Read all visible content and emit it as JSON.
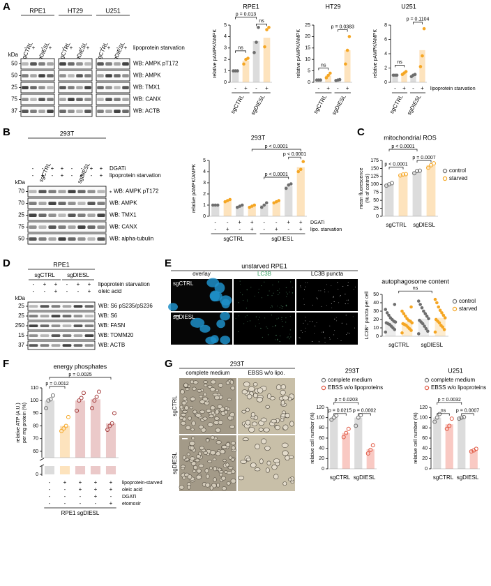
{
  "panel_labels": [
    "A",
    "B",
    "C",
    "D",
    "E",
    "F",
    "G"
  ],
  "blots": [
    {
      "headers": [
        {
          "label": "RPE1",
          "lanes": [
            "sgCTRL",
            "sgDIESL"
          ]
        },
        {
          "label": "HT29",
          "lanes": [
            "sgCTRL",
            "sgDIESL"
          ]
        },
        {
          "label": "U251",
          "lanes": [
            "sgCTRL",
            "sgDIESL"
          ]
        }
      ],
      "rows": [
        {
          "label": "lipoprotein starvation",
          "signs": [
            "-",
            "+",
            "-",
            "+",
            "-",
            "+",
            "-",
            "+",
            "-",
            "+",
            "-",
            "+"
          ]
        }
      ],
      "kda_label": "kDa",
      "bands": [
        {
          "kda": 50,
          "label": "WB: AMPK pT172"
        },
        {
          "kda": 50,
          "label": "WB: AMPK"
        },
        {
          "kda": 25,
          "label": "WB: TMX1"
        },
        {
          "kda": 75,
          "label": "WB: CANX"
        },
        {
          "kda": 37,
          "label": "WB: ACTB"
        }
      ]
    },
    {
      "headers": [
        {
          "label": "293T",
          "lanes": [
            "sgCTRL",
            "sgDIESL"
          ]
        }
      ],
      "rows": [
        {
          "label": "DGATi",
          "signs": [
            "-",
            "-",
            "+",
            "+",
            "-",
            "-",
            "+",
            "+"
          ]
        },
        {
          "label": "lipoprotein starvation",
          "signs": [
            "-",
            "+",
            "-",
            "+",
            "-",
            "+",
            "-",
            "+"
          ]
        }
      ],
      "kda_label": "kDa",
      "bands": [
        {
          "kda": 70,
          "label": "WB: AMPK pT172",
          "note": "*"
        },
        {
          "kda": 70,
          "label": "WB: AMPK"
        },
        {
          "kda": 25,
          "label": "WB: TMX1"
        },
        {
          "kda": 75,
          "label": "WB: CANX"
        },
        {
          "kda": 50,
          "label": "WB: alpha-tubulin"
        }
      ]
    },
    {
      "headers": [
        {
          "label": "RPE1",
          "lanes": [
            "sgCTRL",
            "sgDIESL"
          ]
        }
      ],
      "rows": [
        {
          "label": "lipoprotein starvation",
          "signs": [
            "-",
            "+",
            "+",
            "-",
            "+",
            "+"
          ]
        },
        {
          "label": "oleic acid",
          "signs": [
            "-",
            "-",
            "+",
            "-",
            "-",
            "+"
          ]
        }
      ],
      "kda_label": "kDa",
      "bands": [
        {
          "kda": 25,
          "label": "WB: S6 pS235/pS236"
        },
        {
          "kda": 25,
          "label": "WB: S6"
        },
        {
          "kda": 250,
          "label": "WB: FASN"
        },
        {
          "kda": 15,
          "label": "WB: TOMM20"
        },
        {
          "kda": 37,
          "label": "WB: ACTB"
        }
      ]
    }
  ],
  "charts": [
    {
      "type": "bar",
      "title": "RPE1",
      "ylabel": [
        "relative pAMPK/AMPK"
      ],
      "ylim": [
        0,
        5
      ],
      "yticks": [
        0,
        1,
        2,
        3,
        4,
        5
      ],
      "bars": [
        {
          "value": 1,
          "color": "#dcdcdc",
          "point_color": "#6e6e6e",
          "points": [
            1,
            1,
            1
          ]
        },
        {
          "value": 1.9,
          "color": "#fde3bd",
          "point_color": "#f5a623",
          "points": [
            1.6,
            2.0,
            2.1
          ]
        },
        {
          "value": 3.6,
          "color": "#dcdcdc",
          "point_color": "#6e6e6e",
          "points": [
            2.6,
            3.5,
            4.8
          ]
        },
        {
          "value": 3.9,
          "color": "#fde3bd",
          "point_color": "#f5a623",
          "points": [
            3.1,
            4.6,
            4.8
          ]
        }
      ],
      "rows": [
        {
          "signs": [
            "-",
            "+",
            "-",
            "+"
          ]
        }
      ],
      "groups": [
        "sgCTRL",
        "sgDIESL"
      ],
      "pvalues": [
        "ns",
        "p = 0.013",
        "ns"
      ]
    },
    {
      "type": "bar",
      "title": "HT29",
      "ylabel": [
        "relative pAMPK/AMPK"
      ],
      "ylim": [
        0,
        25
      ],
      "yticks": [
        0,
        5,
        10,
        15,
        20,
        25
      ],
      "bars": [
        {
          "value": 1,
          "color": "#dcdcdc",
          "point_color": "#6e6e6e",
          "points": [
            1,
            1,
            1
          ]
        },
        {
          "value": 3,
          "color": "#fde3bd",
          "point_color": "#f5a623",
          "points": [
            2,
            3,
            4
          ]
        },
        {
          "value": 1,
          "color": "#dcdcdc",
          "point_color": "#6e6e6e",
          "points": [
            0.8,
            1,
            1.2
          ]
        },
        {
          "value": 14,
          "color": "#fde3bd",
          "point_color": "#f5a623",
          "points": [
            8,
            14,
            20
          ]
        }
      ],
      "rows": [
        {
          "signs": [
            "-",
            "+",
            "-",
            "+"
          ]
        }
      ],
      "groups": [
        "sgCTRL",
        "sgDIESL"
      ],
      "pvalues": [
        "ns",
        "p = 0.0383"
      ]
    },
    {
      "type": "bar",
      "title": "U251",
      "ylabel": [
        "relative pAMPK/AMPK"
      ],
      "ylim": [
        0,
        8
      ],
      "yticks": [
        0,
        2,
        4,
        6,
        8
      ],
      "bars": [
        {
          "value": 1,
          "color": "#dcdcdc",
          "point_color": "#6e6e6e",
          "points": [
            1,
            1,
            1
          ]
        },
        {
          "value": 1.3,
          "color": "#fde3bd",
          "point_color": "#f5a623",
          "points": [
            1.1,
            1.3,
            1.5
          ]
        },
        {
          "value": 1,
          "color": "#dcdcdc",
          "point_color": "#6e6e6e",
          "points": [
            0.8,
            1,
            1.1
          ]
        },
        {
          "value": 4.5,
          "color": "#fde3bd",
          "point_color": "#f5a623",
          "points": [
            2.2,
            3.7,
            7.5
          ]
        }
      ],
      "rows": [
        {
          "label": "lipoprotein starvation",
          "signs": [
            "-",
            "+",
            "-",
            "+"
          ]
        }
      ],
      "groups": [
        "sgCTRL",
        "sgDIESL"
      ],
      "pvalues": [
        "ns",
        "p = 0.1104"
      ]
    },
    {
      "type": "bar",
      "title": "293T",
      "ylabel": [
        "relative pAMPK/AMPK"
      ],
      "ylim": [
        0,
        5
      ],
      "yticks": [
        0,
        1,
        2,
        3,
        4,
        5
      ],
      "bars": [
        {
          "value": 1,
          "color": "#dcdcdc",
          "point_color": "#6e6e6e",
          "points": [
            1,
            1,
            1
          ]
        },
        {
          "value": 1.4,
          "color": "#fde3bd",
          "point_color": "#f5a623",
          "points": [
            1.3,
            1.4,
            1.5
          ]
        },
        {
          "value": 0.9,
          "color": "#dcdcdc",
          "point_color": "#6e6e6e",
          "points": [
            0.8,
            0.9,
            1.0
          ]
        },
        {
          "value": 0.9,
          "color": "#fde3bd",
          "point_color": "#f5a623",
          "points": [
            0.8,
            0.9,
            1.0
          ]
        },
        {
          "value": 1,
          "color": "#dcdcdc",
          "point_color": "#6e6e6e",
          "points": [
            0.8,
            1.0,
            1.2
          ]
        },
        {
          "value": 1.3,
          "color": "#fde3bd",
          "point_color": "#f5a623",
          "points": [
            1.2,
            1.3,
            1.4
          ]
        },
        {
          "value": 2.7,
          "color": "#dcdcdc",
          "point_color": "#6e6e6e",
          "points": [
            2.5,
            2.8,
            2.9
          ]
        },
        {
          "value": 4.4,
          "color": "#fde3bd",
          "point_color": "#f5a623",
          "points": [
            4.0,
            4.2,
            4.9
          ]
        }
      ],
      "rows": [
        {
          "label": "DGATi",
          "signs": [
            "-",
            "-",
            "+",
            "+",
            "-",
            "-",
            "+",
            "+"
          ]
        },
        {
          "label": "lipo. starvation",
          "signs": [
            "-",
            "+",
            "-",
            "+",
            "-",
            "+",
            "-",
            "+"
          ]
        }
      ],
      "groups": [
        "sgCTRL",
        "sgDIESL"
      ],
      "pvalues": [
        "p < 0.0001",
        "p < 0.0001",
        "p < 0.0001"
      ]
    },
    {
      "type": "bar",
      "title": "mitochondrial ROS",
      "ylabel": [
        "mean fluorescence",
        "(% of control)"
      ],
      "ylim": [
        0,
        175
      ],
      "yticks": [
        0,
        25,
        50,
        75,
        100,
        125,
        150,
        175
      ],
      "points_open": true,
      "bars": [
        {
          "value": 100,
          "color": "#dcdcdc",
          "point_color": "#6e6e6e",
          "points": [
            96,
            100,
            104
          ]
        },
        {
          "value": 130,
          "color": "#fde3bd",
          "point_color": "#f5a623",
          "points": [
            128,
            131,
            132
          ]
        },
        {
          "value": 140,
          "color": "#dcdcdc",
          "point_color": "#6e6e6e",
          "points": [
            135,
            142,
            143
          ]
        },
        {
          "value": 160,
          "color": "#fde3bd",
          "point_color": "#f5a623",
          "points": [
            152,
            160,
            166
          ]
        }
      ],
      "groups": [
        "sgCTRL",
        "sgDIESL"
      ],
      "legend": [
        {
          "label": "control",
          "color": "#6e6e6e"
        },
        {
          "label": "starved",
          "color": "#f5a623"
        }
      ],
      "pvalues": [
        "p < 0.0001",
        "p < 0.0001",
        "p = 0.0007"
      ]
    },
    {
      "type": "bar",
      "title": "autophagosome content",
      "ylabel": [
        "LC3B⁺ puncta per cell"
      ],
      "ylim": [
        0,
        50
      ],
      "yticks": [
        0,
        10,
        20,
        30,
        40,
        50
      ],
      "bars": [
        {
          "value": 18,
          "color": "#ececec",
          "point_color": "#6e6e6e",
          "points": [
            5,
            8,
            10,
            12,
            14,
            15,
            16,
            17,
            18,
            20,
            22,
            25,
            28,
            32,
            38
          ]
        },
        {
          "value": 17,
          "color": "#fdeccf",
          "point_color": "#f5a623",
          "points": [
            4,
            7,
            9,
            11,
            13,
            14,
            15,
            16,
            18,
            19,
            21,
            24,
            27,
            30,
            35
          ]
        },
        {
          "value": 21,
          "color": "#ececec",
          "point_color": "#6e6e6e",
          "points": [
            3,
            6,
            9,
            12,
            15,
            17,
            19,
            21,
            24,
            27,
            30,
            34,
            38,
            42
          ]
        },
        {
          "value": 22,
          "color": "#fdeccf",
          "point_color": "#f5a623",
          "points": [
            5,
            8,
            11,
            13,
            16,
            18,
            20,
            22,
            25,
            28,
            31,
            35,
            40,
            44
          ]
        }
      ],
      "groups": [
        "sgCTRL",
        "sgDIESL"
      ],
      "legend": [
        {
          "label": "control",
          "color": "#6e6e6e"
        },
        {
          "label": "starved",
          "color": "#f5a623"
        }
      ],
      "pvalues": [
        "ns"
      ]
    },
    {
      "type": "bar",
      "title": "energy phosphates",
      "ylabel": [
        "relative ATP (A.U.)",
        "per mg protein (%)"
      ],
      "ylim": [
        55,
        110
      ],
      "yticks": [
        0,
        60,
        70,
        80,
        90,
        100,
        110
      ],
      "axis_break": true,
      "points_open": true,
      "bars": [
        {
          "value": 100,
          "color": "#dcdcdc",
          "point_color": "#6e6e6e",
          "points": [
            94,
            100,
            101,
            104
          ]
        },
        {
          "value": 80,
          "color": "#fde3bd",
          "point_color": "#f5a623",
          "points": [
            76,
            78,
            80,
            87
          ]
        },
        {
          "value": 100,
          "color": "#ebc9c9",
          "point_color": "#a33a3a",
          "points": [
            92,
            100,
            102,
            106
          ]
        },
        {
          "value": 101,
          "color": "#ebc9c9",
          "point_color": "#a33a3a",
          "points": [
            94,
            100,
            103,
            107
          ]
        },
        {
          "value": 82,
          "color": "#ebc9c9",
          "point_color": "#a33a3a",
          "points": [
            77,
            80,
            82,
            90
          ]
        }
      ],
      "rows": [
        {
          "label": "lipoprotein-starved",
          "signs": [
            "-",
            "+",
            "+",
            "+",
            "+"
          ]
        },
        {
          "label": "oleic acid",
          "signs": [
            "-",
            "-",
            "+",
            "+",
            "+"
          ]
        },
        {
          "label": "DGATi",
          "signs": [
            "-",
            "-",
            "-",
            "+",
            "-"
          ]
        },
        {
          "label": "etomoxir",
          "signs": [
            "-",
            "-",
            "-",
            "-",
            "+"
          ]
        }
      ],
      "groups": [
        "RPE1 sgDIESL"
      ],
      "pvalues": [
        "p = 0.0025",
        "p = 0.0012"
      ]
    },
    {
      "type": "bar",
      "title": "293T",
      "ylabel": [
        "relative cell number (%)"
      ],
      "ylim": [
        0,
        120
      ],
      "yticks": [
        0,
        20,
        40,
        60,
        80,
        100,
        120
      ],
      "points_open": true,
      "bars": [
        {
          "value": 100,
          "color": "#dcdcdc",
          "point_color": "#6e6e6e",
          "points": [
            96,
            100,
            104
          ]
        },
        {
          "value": 70,
          "color": "#f9c9c3",
          "point_color": "#e0553f",
          "points": [
            62,
            70,
            78
          ]
        },
        {
          "value": 100,
          "color": "#dcdcdc",
          "point_color": "#6e6e6e",
          "points": [
            84,
            100,
            105
          ]
        },
        {
          "value": 38,
          "color": "#f9c9c3",
          "point_color": "#e0553f",
          "points": [
            30,
            37,
            46
          ]
        }
      ],
      "groups": [
        "sgCTRL",
        "sgDIESL"
      ],
      "legend": [
        {
          "label": "complete medium",
          "color": "#6e6e6e"
        },
        {
          "label": "EBSS w/o lipoproteins",
          "color": "#e0553f"
        }
      ],
      "pvalues": [
        "p = 0.0203",
        "p = 0.0215",
        "p = 0.0002"
      ]
    },
    {
      "type": "bar",
      "title": "U251",
      "ylabel": [
        "relative cell number (%)"
      ],
      "ylim": [
        0,
        120
      ],
      "yticks": [
        0,
        20,
        40,
        60,
        80,
        100,
        120
      ],
      "points_open": true,
      "bars": [
        {
          "value": 100,
          "color": "#dcdcdc",
          "point_color": "#6e6e6e",
          "points": [
            92,
            100,
            107
          ]
        },
        {
          "value": 87,
          "color": "#f9c9c3",
          "point_color": "#e0553f",
          "points": [
            78,
            84,
            98
          ]
        },
        {
          "value": 100,
          "color": "#dcdcdc",
          "point_color": "#6e6e6e",
          "points": [
            98,
            100,
            101
          ]
        },
        {
          "value": 37,
          "color": "#f9c9c3",
          "point_color": "#e0553f",
          "points": [
            34,
            36,
            39
          ]
        }
      ],
      "groups": [
        "sgCTRL",
        "sgDIESL"
      ],
      "legend": [
        {
          "label": "complete medium",
          "color": "#6e6e6e"
        },
        {
          "label": "EBSS w/o lipoproteins",
          "color": "#e0553f"
        }
      ],
      "pvalues": [
        "p = 0.0032",
        "ns",
        "p = 0.0007"
      ]
    }
  ],
  "microscopy": [
    {
      "title": "unstarved RPE1",
      "columns": [
        "overlay",
        "LC3B",
        "LC3B puncta"
      ],
      "rows": [
        "sgCTRL",
        "sgDIESL"
      ]
    },
    {
      "title": "293T",
      "columns": [
        "complete medium",
        "EBSS w/o lipo."
      ],
      "rows": [
        "sgCTRL",
        "sgDIESL"
      ]
    }
  ]
}
